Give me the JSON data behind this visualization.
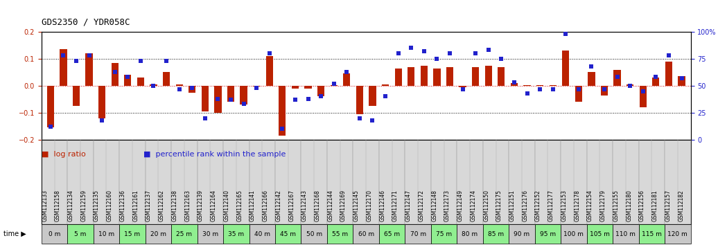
{
  "title": "GDS2350 / YDR058C",
  "samples": [
    "GSM112133",
    "GSM112158",
    "GSM112134",
    "GSM112159",
    "GSM112135",
    "GSM112160",
    "GSM112136",
    "GSM112161",
    "GSM112137",
    "GSM112162",
    "GSM112138",
    "GSM112163",
    "GSM112139",
    "GSM112164",
    "GSM112140",
    "GSM112165",
    "GSM112141",
    "GSM112166",
    "GSM112142",
    "GSM112167",
    "GSM112143",
    "GSM112168",
    "GSM112144",
    "GSM112169",
    "GSM112145",
    "GSM112170",
    "GSM112146",
    "GSM112171",
    "GSM112147",
    "GSM112172",
    "GSM112148",
    "GSM112173",
    "GSM112149",
    "GSM112174",
    "GSM112150",
    "GSM112175",
    "GSM112151",
    "GSM112176",
    "GSM112152",
    "GSM112177",
    "GSM112153",
    "GSM112178",
    "GSM112154",
    "GSM112179",
    "GSM112155",
    "GSM112180",
    "GSM112156",
    "GSM112181",
    "GSM112157",
    "GSM112182"
  ],
  "log_ratio": [
    -0.155,
    0.135,
    -0.075,
    0.12,
    -0.12,
    0.085,
    0.04,
    0.03,
    0.005,
    0.05,
    0.005,
    -0.025,
    -0.095,
    -0.1,
    -0.06,
    -0.07,
    -0.002,
    0.11,
    -0.185,
    -0.01,
    -0.01,
    -0.04,
    0.002,
    0.045,
    -0.105,
    -0.075,
    0.005,
    0.065,
    0.07,
    0.075,
    0.065,
    0.07,
    -0.005,
    0.07,
    0.075,
    0.07,
    0.01,
    0.003,
    0.003,
    0.003,
    0.13,
    -0.06,
    0.05,
    -0.035,
    0.06,
    0.005,
    -0.08,
    0.03,
    0.09,
    0.035
  ],
  "percentile": [
    12,
    78,
    73,
    78,
    18,
    63,
    58,
    73,
    50,
    73,
    47,
    48,
    20,
    38,
    37,
    33,
    48,
    80,
    10,
    37,
    38,
    40,
    52,
    63,
    20,
    18,
    40,
    80,
    85,
    82,
    75,
    80,
    47,
    80,
    83,
    75,
    53,
    43,
    47,
    47,
    98,
    47,
    68,
    47,
    58,
    50,
    45,
    58,
    78,
    57
  ],
  "time_groups": [
    {
      "label": "0 m",
      "start": 0,
      "end": 2,
      "color": "#c8c8c8"
    },
    {
      "label": "5 m",
      "start": 2,
      "end": 4,
      "color": "#90ee90"
    },
    {
      "label": "10 m",
      "start": 4,
      "end": 6,
      "color": "#c8c8c8"
    },
    {
      "label": "15 m",
      "start": 6,
      "end": 8,
      "color": "#90ee90"
    },
    {
      "label": "20 m",
      "start": 8,
      "end": 10,
      "color": "#c8c8c8"
    },
    {
      "label": "25 m",
      "start": 10,
      "end": 12,
      "color": "#90ee90"
    },
    {
      "label": "30 m",
      "start": 12,
      "end": 14,
      "color": "#c8c8c8"
    },
    {
      "label": "35 m",
      "start": 14,
      "end": 16,
      "color": "#90ee90"
    },
    {
      "label": "40 m",
      "start": 16,
      "end": 18,
      "color": "#c8c8c8"
    },
    {
      "label": "45 m",
      "start": 18,
      "end": 20,
      "color": "#90ee90"
    },
    {
      "label": "50 m",
      "start": 20,
      "end": 22,
      "color": "#c8c8c8"
    },
    {
      "label": "55 m",
      "start": 22,
      "end": 24,
      "color": "#90ee90"
    },
    {
      "label": "60 m",
      "start": 24,
      "end": 26,
      "color": "#c8c8c8"
    },
    {
      "label": "65 m",
      "start": 26,
      "end": 28,
      "color": "#90ee90"
    },
    {
      "label": "70 m",
      "start": 28,
      "end": 30,
      "color": "#c8c8c8"
    },
    {
      "label": "75 m",
      "start": 30,
      "end": 32,
      "color": "#90ee90"
    },
    {
      "label": "80 m",
      "start": 32,
      "end": 34,
      "color": "#c8c8c8"
    },
    {
      "label": "85 m",
      "start": 34,
      "end": 36,
      "color": "#90ee90"
    },
    {
      "label": "90 m",
      "start": 36,
      "end": 38,
      "color": "#c8c8c8"
    },
    {
      "label": "95 m",
      "start": 38,
      "end": 40,
      "color": "#90ee90"
    },
    {
      "label": "100 m",
      "start": 40,
      "end": 42,
      "color": "#c8c8c8"
    },
    {
      "label": "105 m",
      "start": 42,
      "end": 44,
      "color": "#90ee90"
    },
    {
      "label": "110 m",
      "start": 44,
      "end": 46,
      "color": "#c8c8c8"
    },
    {
      "label": "115 m",
      "start": 46,
      "end": 48,
      "color": "#90ee90"
    },
    {
      "label": "120 m",
      "start": 48,
      "end": 50,
      "color": "#c8c8c8"
    }
  ],
  "ylim_left": [
    -0.2,
    0.2
  ],
  "ylim_right": [
    0,
    100
  ],
  "bar_color": "#bb2200",
  "dot_color": "#2222cc",
  "bg_color": "#ffffff",
  "plot_bg_color": "#ffffff",
  "zero_line_color": "#cc0000",
  "sample_bg_color": "#d8d8d8",
  "sample_border_color": "#aaaaaa",
  "title_fontsize": 9,
  "tick_fontsize": 7,
  "label_fontsize": 5.5,
  "time_fontsize": 6.5,
  "legend_fontsize": 8
}
